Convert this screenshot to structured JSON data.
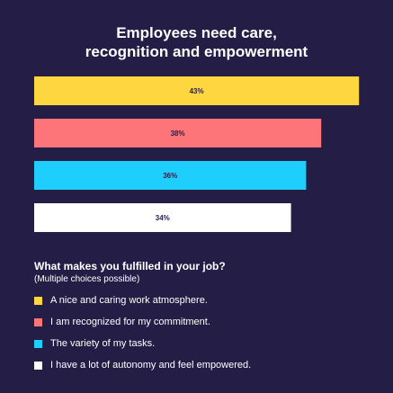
{
  "chart_data": {
    "type": "bar",
    "orientation": "horizontal",
    "title_lines": [
      "Employees need care,",
      "recognition and empowerment"
    ],
    "categories": [
      "A nice and caring work atmosphere.",
      "I am recognized for my commitment.",
      "The variety of my tasks.",
      "I have a lot of autonomy and feel empowered."
    ],
    "values": [
      43,
      38,
      36,
      34
    ],
    "value_labels": [
      "43%",
      "38%",
      "36%",
      "34%"
    ],
    "colors": [
      "#fed63f",
      "#fd7479",
      "#1ecffe",
      "#ffffff"
    ],
    "value_unit": "%",
    "legend": {
      "heading": "What makes you fulfilled in your job?",
      "note": "(Multiple choices possible)",
      "placement": "bottom-left"
    },
    "grid": false
  },
  "style": {
    "background": "#241d45",
    "text_color": "#ffffff",
    "bar_label_color": "#2a224d"
  }
}
